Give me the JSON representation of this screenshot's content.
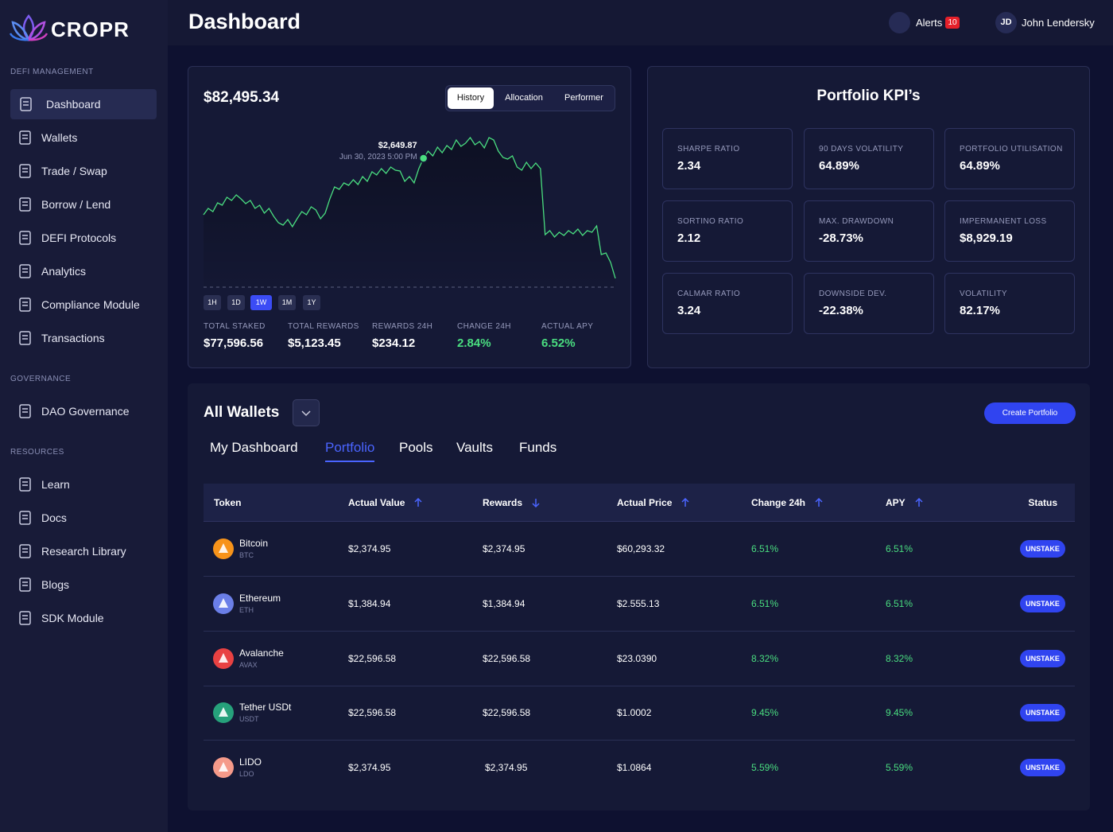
{
  "brand": "CROPR",
  "header": {
    "title": "Dashboard",
    "alerts": "Alerts",
    "alert_count": 10,
    "user_initials": "JD",
    "user_name": "John Lendersky"
  },
  "sidebar": {
    "sections": [
      {
        "heading": "DEFI MANAGEMENT",
        "items": [
          "Dashboard",
          "Wallets",
          "Trade / Swap",
          "Borrow / Lend",
          "DEFI Protocols",
          "Analytics",
          "Compliance Module",
          "Transactions"
        ]
      },
      {
        "heading": "GOVERNANCE",
        "items": [
          "DAO Governance"
        ]
      },
      {
        "heading": "RESOURCES",
        "items": [
          "Learn",
          "Docs",
          "Research Library",
          "Blogs",
          "SDK Module"
        ]
      }
    ]
  },
  "portfolio": {
    "balance": "$82,495.34",
    "tabs": [
      "History",
      "Allocation",
      "Performer"
    ],
    "ranges": [
      "1H",
      "1D",
      "1W",
      "1M",
      "1Y"
    ],
    "stats": [
      {
        "label": "TOTAL STAKED",
        "value": "$77,596.56"
      },
      {
        "label": "TOTAL REWARDS",
        "value": "$5,123.45"
      },
      {
        "label": "REWARDS 24H",
        "value": "$234.12"
      },
      {
        "label": "CHANGE 24H",
        "value": "2.84%",
        "color": "#4ade80"
      },
      {
        "label": "ACTUAL APY",
        "value": "6.52%",
        "color": "#4ade80"
      }
    ]
  },
  "chart_data": {
    "type": "line",
    "color": "#4ade80",
    "values": [
      1940,
      2020,
      1980,
      2090,
      2060,
      2160,
      2120,
      2190,
      2140,
      2080,
      2120,
      2020,
      2060,
      1960,
      2020,
      1920,
      1840,
      1810,
      1880,
      1790,
      1890,
      1980,
      1940,
      2040,
      2000,
      1890,
      1960,
      2140,
      2290,
      2260,
      2340,
      2310,
      2380,
      2320,
      2420,
      2360,
      2480,
      2440,
      2520,
      2460,
      2540,
      2500,
      2490,
      2360,
      2420,
      2340,
      2520,
      2649.87,
      2740,
      2680,
      2790,
      2720,
      2810,
      2760,
      2880,
      2800,
      2840,
      2910,
      2820,
      2860,
      2780,
      2910,
      2880,
      2740,
      2660,
      2640,
      2680,
      2540,
      2500,
      2600,
      2520,
      2590,
      2520,
      1690,
      1740,
      1660,
      1720,
      1680,
      1740,
      1700,
      1760,
      1680,
      1740,
      1720,
      1800,
      1440,
      1460,
      1340,
      1140
    ],
    "tooltip": {
      "value": 2649.87,
      "label": "$2,649.87",
      "date": "Jun 30, 2023 5:00 PM"
    }
  },
  "kpis": {
    "title": "Portfolio KPI’s",
    "items": [
      {
        "label": "SHARPE RATIO",
        "value": "2.34"
      },
      {
        "label": "90 DAYS VOLATILITY",
        "value": "64.89%"
      },
      {
        "label": "PORTFOLIO UTILISATION",
        "value": "64.89%"
      },
      {
        "label": "SORTINO RATIO",
        "value": "2.12"
      },
      {
        "label": "MAX. DRAWDOWN",
        "value": "-28.73%"
      },
      {
        "label": "IMPERMANENT LOSS",
        "value": "$8,929.19"
      },
      {
        "label": "CALMAR RATIO",
        "value": "3.24"
      },
      {
        "label": "DOWNSIDE DEV.",
        "value": "-22.38%"
      },
      {
        "label": "VOLATILITY",
        "value": "82.17%"
      }
    ]
  },
  "wallets": {
    "title": "All Wallets",
    "create": "Create Portfolio",
    "tabs": [
      "My Dashboard",
      "Portfolio",
      "Pools",
      "Vaults",
      "Funds"
    ],
    "columns": [
      {
        "label": "Token"
      },
      {
        "label": "Actual Value",
        "sort": "asc"
      },
      {
        "label": "Rewards",
        "sort": "desc"
      },
      {
        "label": "Actual Price",
        "sort": "asc"
      },
      {
        "label": "Change 24h",
        "sort": "asc"
      },
      {
        "label": "APY",
        "sort": "asc"
      },
      {
        "label": "Status"
      }
    ],
    "rows": [
      {
        "token": "Bitcoin",
        "symbol": "BTC",
        "color": "#f7931a",
        "actual_value": "$2,374.95",
        "rewards": "$2,374.95",
        "price": "$60,293.32",
        "change": "6.51%",
        "apy": "6.51%",
        "status": "UNSTAKE"
      },
      {
        "token": "Ethereum",
        "symbol": "ETH",
        "color": "#6b7fe8",
        "actual_value": "$1,384.94",
        "rewards": "$1,384.94",
        "price": "$2.555.13",
        "change": "6.51%",
        "apy": "6.51%",
        "status": "UNSTAKE"
      },
      {
        "token": "Avalanche",
        "symbol": "AVAX",
        "color": "#e84142",
        "actual_value": "$22,596.58",
        "rewards": "$22,596.58",
        "price": "$23.0390",
        "change": "8.32%",
        "apy": "8.32%",
        "status": "UNSTAKE"
      },
      {
        "token": "Tether USDt",
        "symbol": "USDT",
        "color": "#26a17b",
        "actual_value": "$22,596.58",
        "rewards": "$22,596.58",
        "price": "$1.0002",
        "change": "9.45%",
        "apy": "9.45%",
        "status": "UNSTAKE"
      },
      {
        "token": "LIDO",
        "symbol": "LDO",
        "color": "#f59a8a",
        "actual_value": "$2,374.95",
        "rewards": "$2,374.95",
        "price": "$1.0864",
        "change": "5.59%",
        "apy": "5.59%",
        "status": "UNSTAKE"
      }
    ]
  }
}
